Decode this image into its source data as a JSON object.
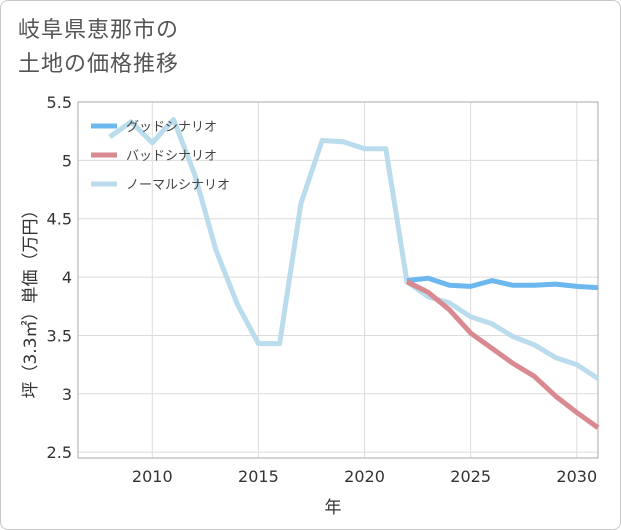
{
  "title": {
    "line1": "岐阜県恵那市の",
    "line2": "土地の価格推移"
  },
  "chart_data": {
    "type": "line",
    "title": "岐阜県恵那市の土地の価格推移",
    "xlabel": "年",
    "ylabel": "坪（3.3㎡）単価（万円）",
    "xlim": [
      2006.5,
      2031
    ],
    "ylim": [
      2.45,
      5.5
    ],
    "xticks": [
      2010,
      2015,
      2020,
      2025,
      2030
    ],
    "xtick_labels": [
      "2010",
      "2015",
      "2020",
      "2025",
      "2030"
    ],
    "yticks": [
      2.5,
      3,
      3.5,
      4,
      4.5,
      5,
      5.5
    ],
    "ytick_labels": [
      "2.5",
      "3",
      "3.5",
      "4",
      "4.5",
      "5",
      "5.5"
    ],
    "grid": true,
    "legend_position": "top-left",
    "series": [
      {
        "name": "グッドシナリオ",
        "color": "#6cb8ee",
        "x": [
          2022,
          2023,
          2024,
          2025,
          2026,
          2027,
          2028,
          2029,
          2030,
          2031
        ],
        "y": [
          3.97,
          3.99,
          3.93,
          3.92,
          3.97,
          3.93,
          3.93,
          3.94,
          3.92,
          3.91
        ]
      },
      {
        "name": "バッドシナリオ",
        "color": "#d98a90",
        "x": [
          2022,
          2023,
          2024,
          2025,
          2026,
          2027,
          2028,
          2029,
          2030,
          2031
        ],
        "y": [
          3.96,
          3.87,
          3.72,
          3.52,
          3.39,
          3.26,
          3.15,
          2.98,
          2.84,
          2.71
        ]
      },
      {
        "name": "ノーマルシナリオ",
        "color": "#badced",
        "x": [
          2008,
          2009,
          2010,
          2011,
          2012,
          2013,
          2014,
          2015,
          2016,
          2017,
          2018,
          2019,
          2020,
          2021,
          2022,
          2023,
          2024,
          2025,
          2026,
          2027,
          2028,
          2029,
          2030,
          2031
        ],
        "y": [
          5.2,
          5.33,
          5.15,
          5.35,
          4.88,
          4.23,
          3.77,
          3.43,
          3.43,
          4.63,
          5.17,
          5.16,
          5.1,
          5.1,
          3.96,
          3.83,
          3.78,
          3.66,
          3.6,
          3.49,
          3.42,
          3.31,
          3.25,
          3.13
        ]
      }
    ]
  }
}
